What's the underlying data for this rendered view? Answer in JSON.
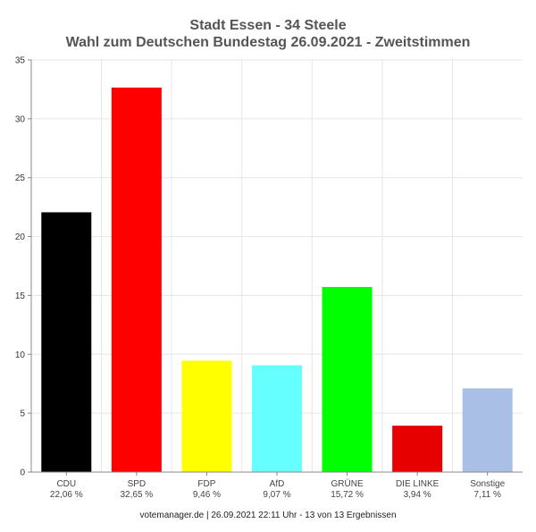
{
  "chart_data": {
    "type": "bar",
    "title": "Stadt Essen - 34 Steele",
    "subtitle": "Wahl zum Deutschen Bundestag 26.09.2021  - Zweitstimmen",
    "xlabel": "",
    "ylabel": "",
    "ylim": [
      0,
      35
    ],
    "yticks": [
      0,
      5,
      10,
      15,
      20,
      25,
      30,
      35
    ],
    "grid": true,
    "legend": "none",
    "categories": [
      "CDU",
      "SPD",
      "FDP",
      "AfD",
      "GRÜNE",
      "DIE LINKE",
      "Sonstige"
    ],
    "value_labels": [
      "22,06 %",
      "32,65 %",
      "9,46 %",
      "9,07 %",
      "15,72 %",
      "3,94 %",
      "7,11 %"
    ],
    "values": [
      22.06,
      32.65,
      9.46,
      9.07,
      15.72,
      3.94,
      7.11
    ],
    "colors": [
      "#000000",
      "#ff0000",
      "#ffff00",
      "#66ffff",
      "#00ff00",
      "#e60000",
      "#aabfe6"
    ]
  },
  "footer": "votemanager.de | 26.09.2021 22:11 Uhr - 13 von 13 Ergebnissen"
}
